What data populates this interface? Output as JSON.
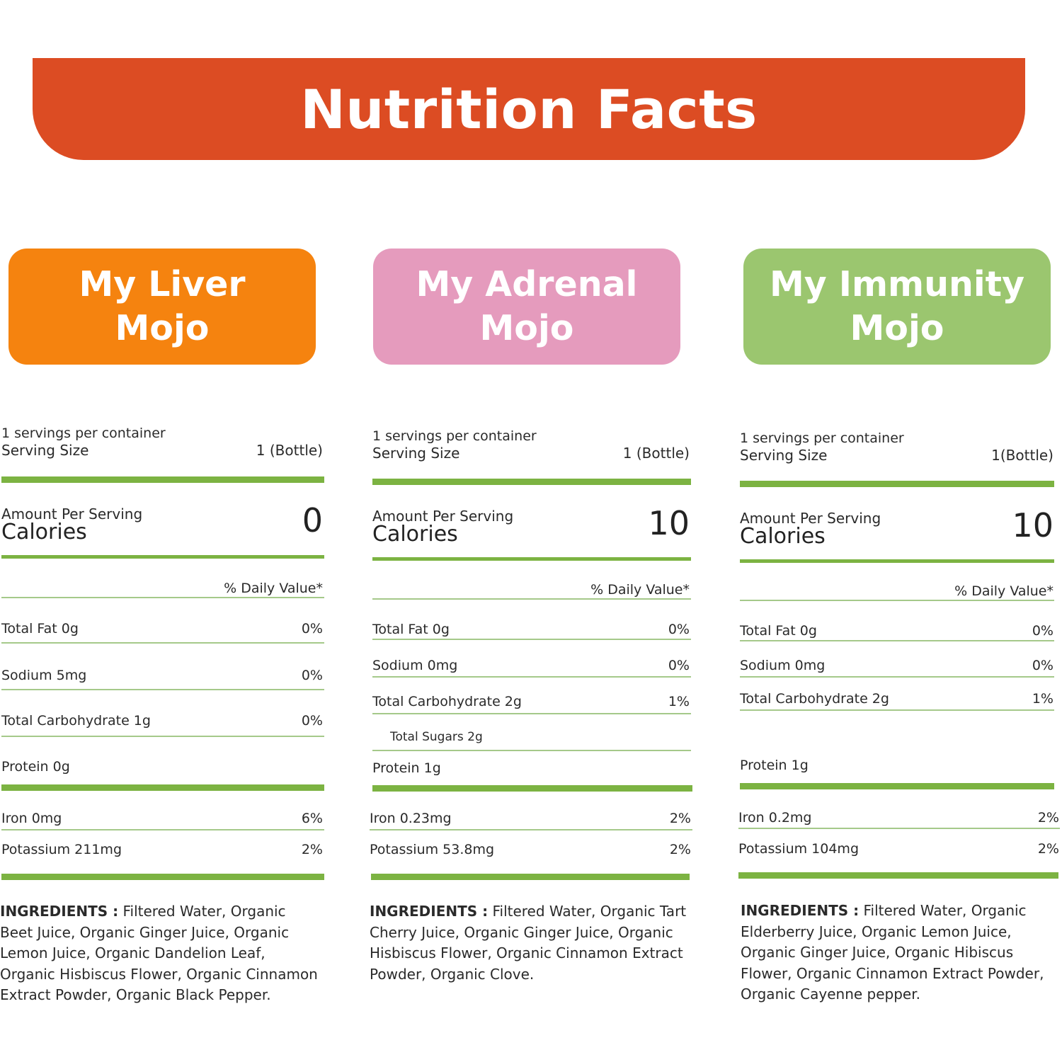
{
  "header": {
    "title": "Nutrition Facts"
  },
  "products": [
    {
      "name": "My Liver\nMojo",
      "color": "#f5830f",
      "servings_per_container": "1 servings per container",
      "serving_size_label": "Serving Size",
      "serving_size_value": "1 (Bottle)",
      "amount_per_serving_label": "Amount Per Serving",
      "calories_label": "Calories",
      "calories_value": "0",
      "daily_value_label": "% Daily Value*",
      "nutrients": [
        {
          "label": "Total Fat 0g",
          "dv": "0%"
        },
        {
          "label": "Sodium 5mg",
          "dv": "0%"
        },
        {
          "label": "Total Carbohydrate 1g",
          "dv": "0%"
        },
        {
          "label": "Protein 0g",
          "dv": ""
        }
      ],
      "minerals": [
        {
          "label": "Iron 0mg",
          "dv": "6%"
        },
        {
          "label": "Potassium 211mg",
          "dv": "2%"
        }
      ],
      "ingredients_label": "INGREDIENTS :",
      "ingredients_text": "Filtered Water, Organic Beet Juice, Organic Ginger Juice, Organic Lemon Juice, Organic Dandelion Leaf, Organic Hisbiscus Flower, Organic Cinnamon Extract Powder, Organic Black Pepper."
    },
    {
      "name": "My Adrenal\nMojo",
      "color": "#e59bbd",
      "servings_per_container": "1 servings per container",
      "serving_size_label": "Serving Size",
      "serving_size_value": "1 (Bottle)",
      "amount_per_serving_label": "Amount Per Serving",
      "calories_label": "Calories",
      "calories_value": "10",
      "daily_value_label": "% Daily Value*",
      "nutrients": [
        {
          "label": "Total Fat 0g",
          "dv": "0%"
        },
        {
          "label": "Sodium 0mg",
          "dv": "0%"
        },
        {
          "label": "Total Carbohydrate 2g",
          "dv": "1%"
        },
        {
          "label": "Total Sugars 2g",
          "dv": ""
        },
        {
          "label": "Protein 1g",
          "dv": ""
        }
      ],
      "minerals": [
        {
          "label": "Iron 0.23mg",
          "dv": "2%"
        },
        {
          "label": "Potassium 53.8mg",
          "dv": "2%"
        }
      ],
      "ingredients_label": "INGREDIENTS :",
      "ingredients_text": "Filtered Water, Organic Tart Cherry Juice, Organic Ginger Juice, Organic Hisbiscus Flower, Organic Cinnamon Extract Powder, Organic Clove."
    },
    {
      "name": "My Immunity\nMojo",
      "color": "#9bc66f",
      "servings_per_container": "1 servings per container",
      "serving_size_label": "Serving Size",
      "serving_size_value": "1(Bottle)",
      "amount_per_serving_label": "Amount Per Serving",
      "calories_label": "Calories",
      "calories_value": "10",
      "daily_value_label": "% Daily Value*",
      "nutrients": [
        {
          "label": "Total Fat 0g",
          "dv": "0%"
        },
        {
          "label": "Sodium 0mg",
          "dv": "0%"
        },
        {
          "label": "Total Carbohydrate 2g",
          "dv": "1%"
        },
        {
          "label": "Protein 1g",
          "dv": ""
        }
      ],
      "minerals": [
        {
          "label": "Iron 0.2mg",
          "dv": "2%"
        },
        {
          "label": "Potassium 104mg",
          "dv": "2%"
        }
      ],
      "ingredients_label": "INGREDIENTS :",
      "ingredients_text": "Filtered Water, Organic Elderberry Juice, Organic Lemon Juice, Organic Ginger Juice, Organic Hibiscus Flower, Organic Cinnamon Extract Powder, Organic Cayenne pepper."
    }
  ]
}
